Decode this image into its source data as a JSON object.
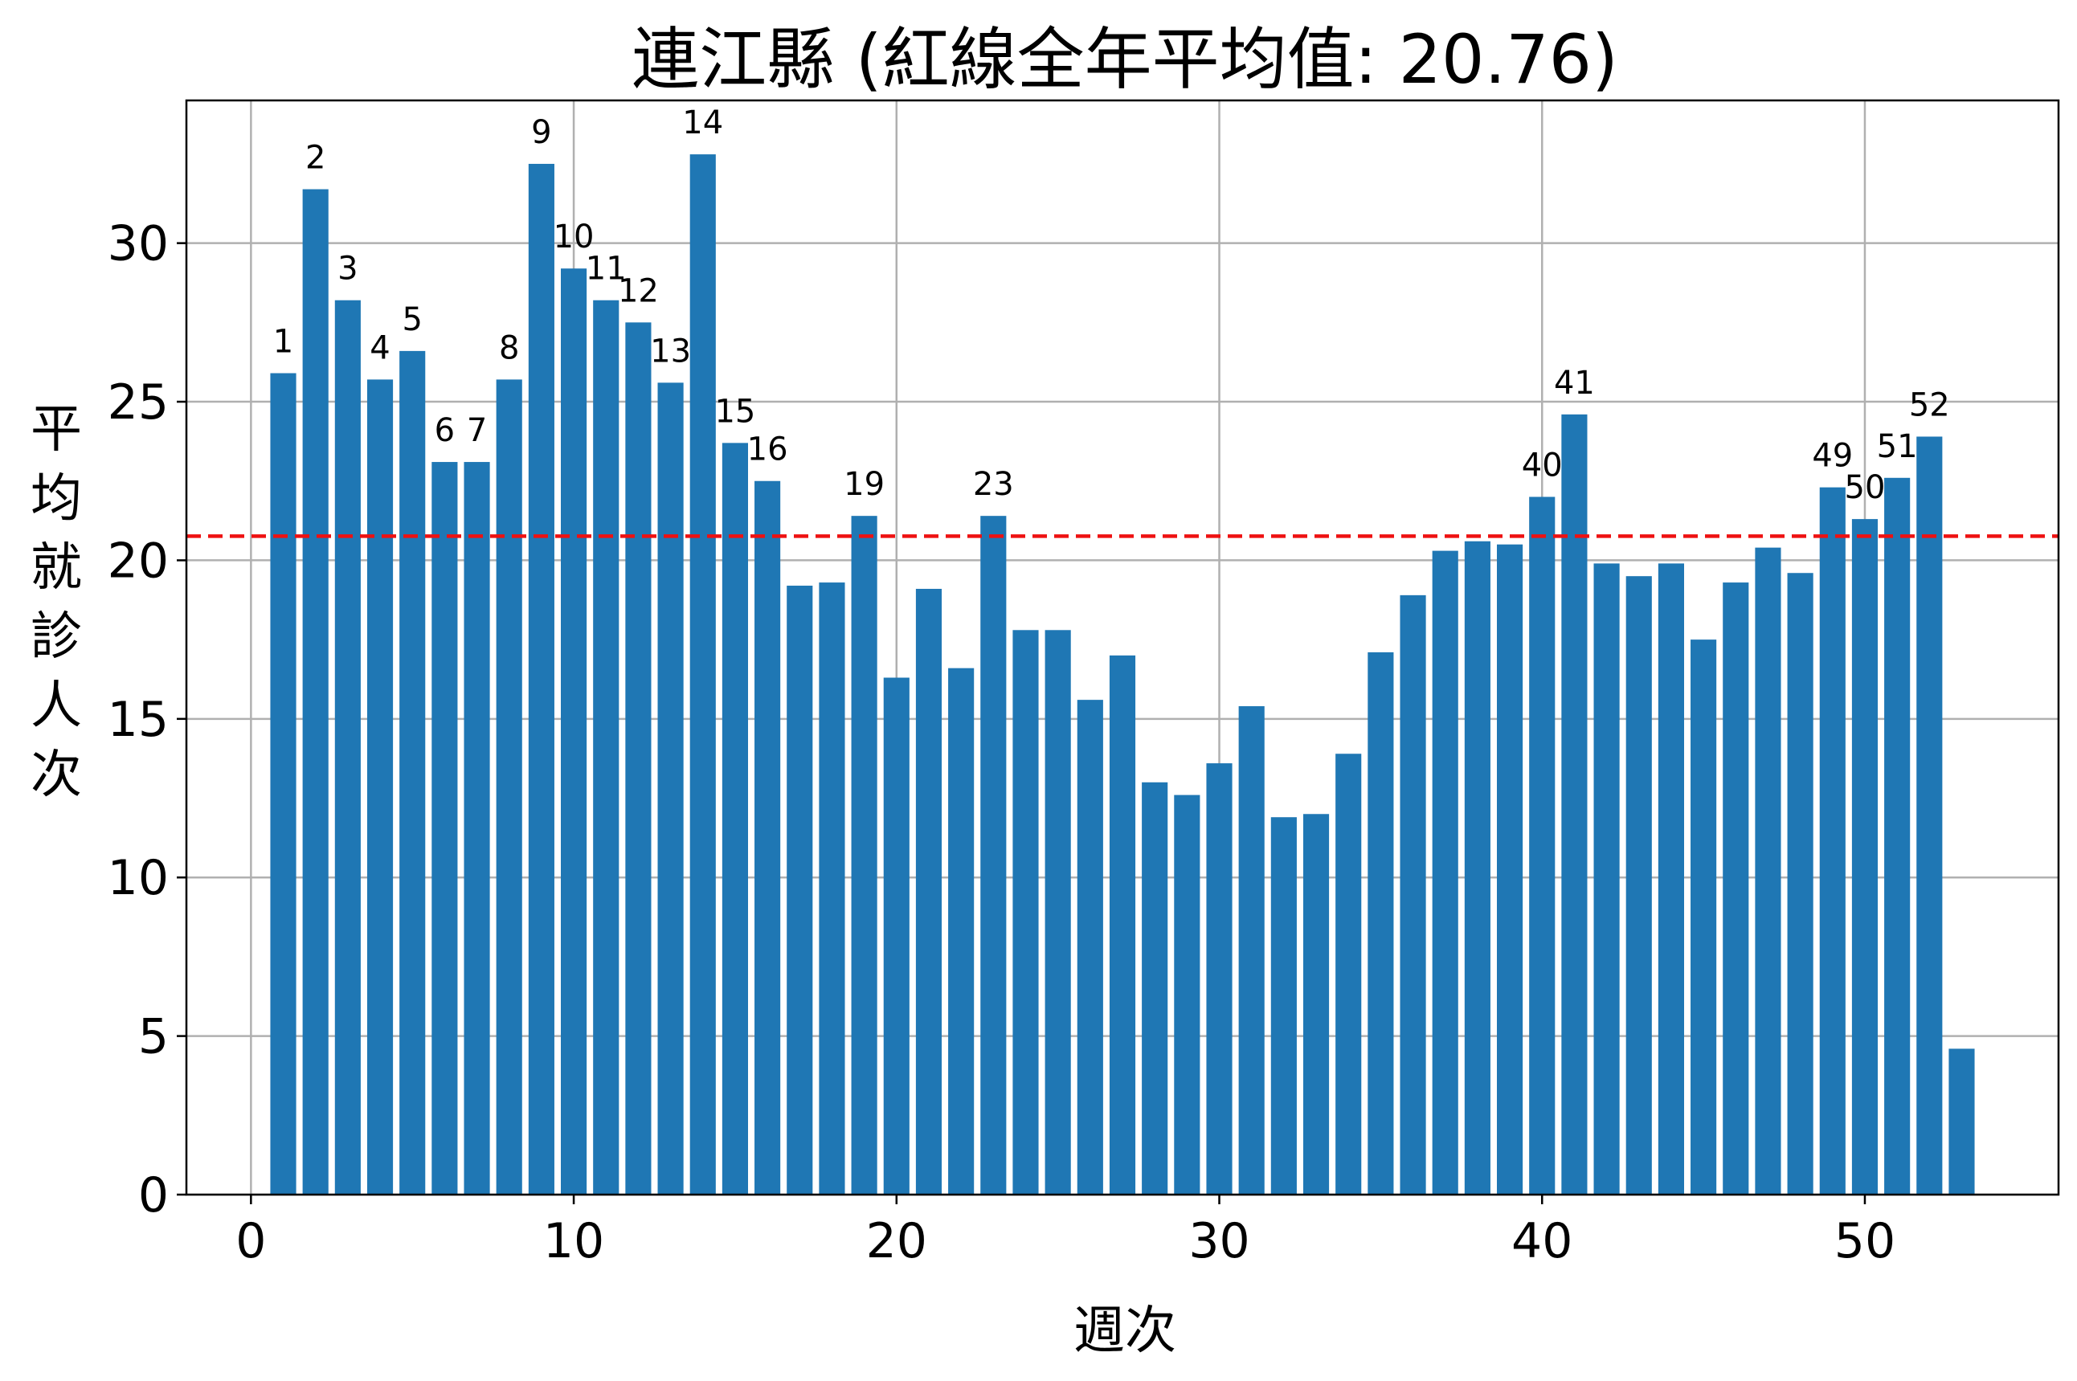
{
  "chart_data": {
    "type": "bar",
    "title": "連江縣 (紅線全年平均值: 20.76)",
    "xlabel": "週次",
    "ylabel": "平均就診人次",
    "xlim": [
      -2,
      56
    ],
    "ylim": [
      0,
      34.5
    ],
    "xticks": [
      0,
      10,
      20,
      30,
      40,
      50
    ],
    "yticks": [
      0,
      5,
      10,
      15,
      20,
      25,
      30
    ],
    "grid": true,
    "bar_color": "#1f77b4",
    "mean_line": {
      "value": 20.76,
      "color": "#ee1111",
      "style": "dashed"
    },
    "x": [
      1,
      2,
      3,
      4,
      5,
      6,
      7,
      8,
      9,
      10,
      11,
      12,
      13,
      14,
      15,
      16,
      17,
      18,
      19,
      20,
      21,
      22,
      23,
      24,
      25,
      26,
      27,
      28,
      29,
      30,
      31,
      32,
      33,
      34,
      35,
      36,
      37,
      38,
      39,
      40,
      41,
      42,
      43,
      44,
      45,
      46,
      47,
      48,
      49,
      50,
      51,
      52,
      53
    ],
    "values": [
      25.9,
      31.7,
      28.2,
      25.7,
      26.6,
      23.1,
      23.1,
      25.7,
      32.5,
      29.2,
      28.2,
      27.5,
      25.6,
      32.8,
      23.7,
      22.5,
      19.2,
      19.3,
      21.4,
      16.3,
      19.1,
      16.6,
      21.4,
      17.8,
      17.8,
      15.6,
      17.0,
      13.0,
      12.6,
      13.6,
      15.4,
      11.9,
      12.0,
      13.9,
      17.1,
      18.9,
      20.3,
      20.6,
      20.5,
      22.0,
      24.6,
      19.9,
      19.5,
      19.9,
      17.5,
      19.3,
      20.4,
      19.6,
      22.3,
      21.3,
      22.6,
      23.9,
      4.6
    ],
    "labeled_bars": [
      1,
      2,
      3,
      4,
      5,
      6,
      7,
      8,
      9,
      10,
      11,
      12,
      13,
      14,
      15,
      16,
      19,
      23,
      40,
      41,
      49,
      50,
      51,
      52
    ]
  }
}
